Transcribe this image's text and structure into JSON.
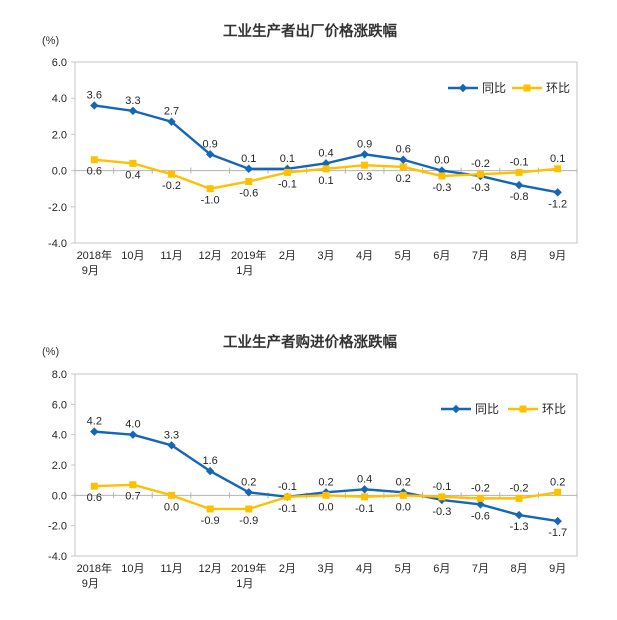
{
  "page": {
    "background": "#ffffff",
    "axis_color": "#c6c6c6",
    "zero_line_color": "#b3b3b3"
  },
  "chart_data": [
    {
      "type": "line",
      "title": "工业生产者出厂价格涨跌幅",
      "unit_label": "(%)",
      "categories": [
        "2018年|9月",
        "10月",
        "11月",
        "12月",
        "2019年|1月",
        "2月",
        "3月",
        "4月",
        "5月",
        "6月",
        "7月",
        "8月",
        "9月"
      ],
      "series": [
        {
          "name": "同比",
          "marker": "diamond",
          "color": "#1467b8",
          "values": [
            3.6,
            3.3,
            2.7,
            0.9,
            0.1,
            0.1,
            0.4,
            0.9,
            0.6,
            0.0,
            -0.3,
            -0.8,
            -1.2
          ]
        },
        {
          "name": "环比",
          "marker": "square",
          "color": "#ffc000",
          "values": [
            0.6,
            0.4,
            -0.2,
            -1.0,
            -0.6,
            -0.1,
            0.1,
            0.3,
            0.2,
            -0.3,
            -0.2,
            -0.1,
            0.1
          ]
        }
      ],
      "ylim": [
        -4.0,
        6.0
      ],
      "yticks": [
        6.0,
        4.0,
        2.0,
        0.0,
        -2.0,
        -4.0
      ],
      "grid": false,
      "legend_position": "top-right-inside",
      "data_labels": true
    },
    {
      "type": "line",
      "title": "工业生产者购进价格涨跌幅",
      "unit_label": "(%)",
      "categories": [
        "2018年|9月",
        "10月",
        "11月",
        "12月",
        "2019年|1月",
        "2月",
        "3月",
        "4月",
        "5月",
        "6月",
        "7月",
        "8月",
        "9月"
      ],
      "series": [
        {
          "name": "同比",
          "marker": "diamond",
          "color": "#1467b8",
          "values": [
            4.2,
            4.0,
            3.3,
            1.6,
            0.2,
            -0.1,
            0.2,
            0.4,
            0.2,
            -0.3,
            -0.6,
            -1.3,
            -1.7
          ]
        },
        {
          "name": "环比",
          "marker": "square",
          "color": "#ffc000",
          "values": [
            0.6,
            0.7,
            0.0,
            -0.9,
            -0.9,
            -0.1,
            0.0,
            -0.1,
            0.0,
            -0.1,
            -0.2,
            -0.2,
            0.2
          ]
        }
      ],
      "ylim": [
        -4.0,
        8.0
      ],
      "yticks": [
        8.0,
        6.0,
        4.0,
        2.0,
        0.0,
        -2.0,
        -4.0
      ],
      "grid": false,
      "legend_position": "top-right-inside",
      "data_labels": true
    }
  ]
}
